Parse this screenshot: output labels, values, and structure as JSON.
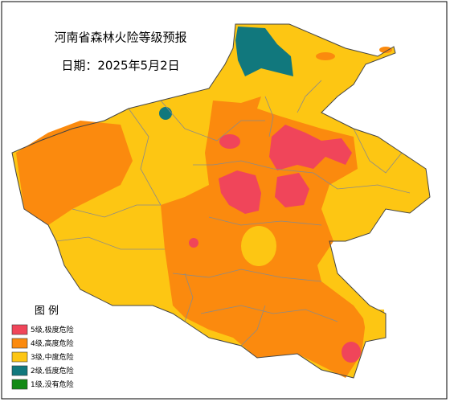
{
  "map": {
    "title": "河南省森林火险等级预报",
    "date": "日期：2025年5月2日",
    "legend": {
      "title": "图 例",
      "items": [
        {
          "label": "5级,极度危险",
          "color": "#f0455a"
        },
        {
          "label": "4级,高度危险",
          "color": "#fb8a0e"
        },
        {
          "label": "3级,中度危险",
          "color": "#fdc613"
        },
        {
          "label": "2级,低度危险",
          "color": "#11787d"
        },
        {
          "label": "1级,没有危险",
          "color": "#138a16"
        }
      ]
    }
  }
}
